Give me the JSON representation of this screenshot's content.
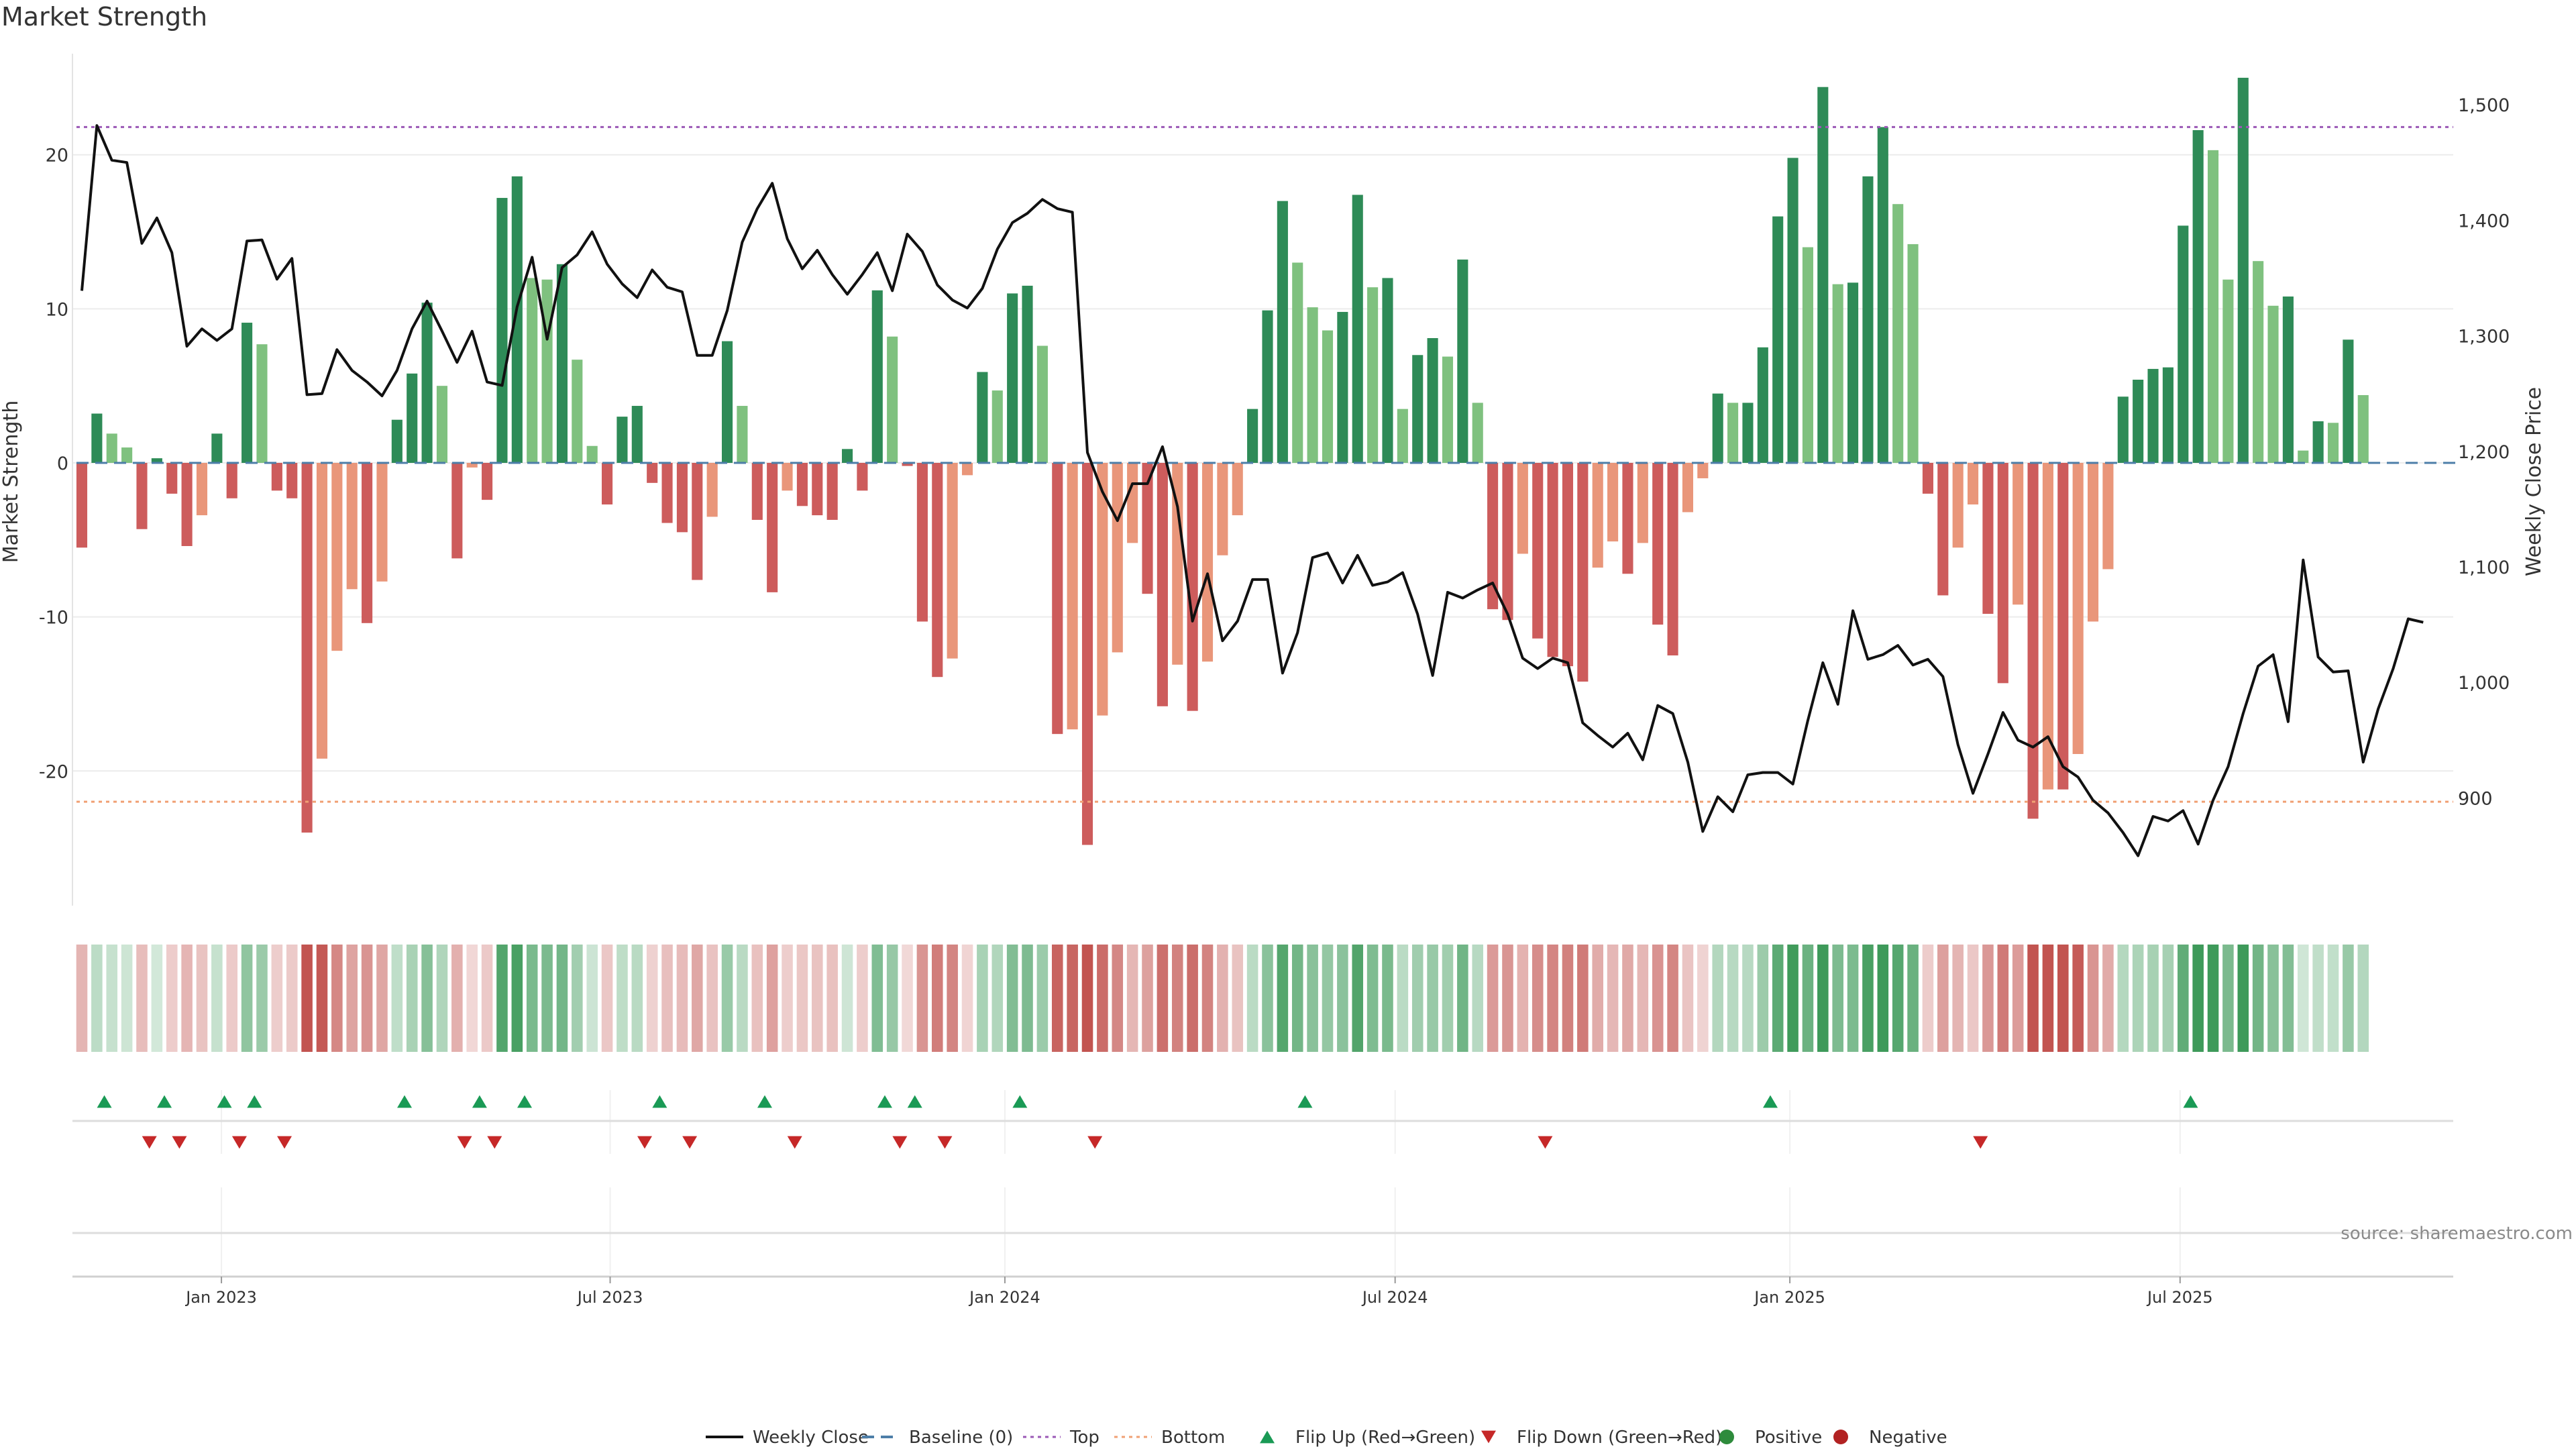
{
  "chart_data": {
    "type": "bar",
    "title": "Market Strength",
    "ylabel": "Market Strength",
    "y2label": "Weekly Close Price",
    "ylim": [
      -27,
      27
    ],
    "y2lim": [
      830,
      1550
    ],
    "yticks": [
      -20,
      -10,
      0,
      10,
      20
    ],
    "y2ticks": [
      900,
      1000,
      1100,
      1200,
      1300,
      1400,
      1500
    ],
    "y2tick_labels": [
      "900",
      "1,000",
      "1,100",
      "1,200",
      "1,300",
      "1,400",
      "1,500"
    ],
    "week_range": [
      0,
      158
    ],
    "xticks": [
      {
        "label": "Jan 2023",
        "week": 9.3
      },
      {
        "label": "Jul 2023",
        "week": 35.2
      },
      {
        "label": "Jan 2024",
        "week": 61.5
      },
      {
        "label": "Jul 2024",
        "week": 87.5
      },
      {
        "label": "Jan 2025",
        "week": 113.8
      },
      {
        "label": "Jul 2025",
        "week": 139.8
      }
    ],
    "top_level": 21.8,
    "bottom_level": -22.0,
    "strength": [
      -5.5,
      3.2,
      1.9,
      1.0,
      -4.3,
      0.3,
      -2.0,
      -5.4,
      -3.4,
      1.9,
      -2.3,
      9.1,
      7.7,
      -1.8,
      -2.3,
      -24.0,
      -19.2,
      -12.2,
      -8.2,
      -10.4,
      -7.7,
      2.8,
      5.8,
      10.4,
      5.0,
      -6.2,
      -0.3,
      -2.4,
      17.2,
      18.6,
      12.0,
      11.9,
      12.9,
      6.7,
      1.1,
      -2.7,
      3.0,
      3.7,
      -1.3,
      -3.9,
      -4.5,
      -7.6,
      -3.5,
      7.9,
      3.7,
      -3.7,
      -8.4,
      -1.8,
      -2.8,
      -3.4,
      -3.7,
      0.9,
      -1.8,
      11.2,
      8.2,
      -0.2,
      -10.3,
      -13.9,
      -12.7,
      -0.8,
      5.9,
      4.7,
      11.0,
      11.5,
      7.6,
      -17.6,
      -17.3,
      -24.8,
      -16.4,
      -12.3,
      -5.2,
      -8.5,
      -15.8,
      -13.1,
      -16.1,
      -12.9,
      -6.0,
      -3.4,
      3.5,
      9.9,
      17.0,
      13.0,
      10.1,
      8.6,
      9.8,
      17.4,
      11.4,
      12.0,
      3.5,
      7.0,
      8.1,
      6.9,
      13.2,
      3.9,
      -9.5,
      -10.2,
      -5.9,
      -11.4,
      -12.6,
      -13.2,
      -14.2,
      -6.8,
      -5.1,
      -7.2,
      -5.2,
      -10.5,
      -12.5,
      -3.2,
      -1.0,
      4.5,
      3.9,
      3.9,
      7.5,
      16.0,
      19.8,
      14.0,
      24.4,
      11.6,
      11.7,
      18.6,
      21.8,
      16.8,
      14.2,
      -2.0,
      -8.6,
      -5.5,
      -2.7,
      -9.8,
      -14.3,
      -9.2,
      -23.1,
      -21.2,
      -21.2,
      -18.9,
      -10.3,
      -6.9,
      4.3,
      5.4,
      6.1,
      6.2,
      15.4,
      21.6,
      20.3,
      11.9,
      25.0,
      13.1,
      10.2,
      10.8,
      0.8,
      2.7,
      2.6,
      8.0,
      4.4
    ],
    "weekly_close": [
      1339,
      1482,
      1452,
      1450,
      1380,
      1402,
      1372,
      1291,
      1306,
      1296,
      1306,
      1382,
      1383,
      1349,
      1367,
      1249,
      1250,
      1288,
      1270,
      1260,
      1248,
      1270,
      1306,
      1330,
      1304,
      1277,
      1304,
      1260,
      1257,
      1325,
      1368,
      1297,
      1359,
      1370,
      1390,
      1362,
      1345,
      1333,
      1357,
      1342,
      1338,
      1283,
      1283,
      1322,
      1381,
      1410,
      1432,
      1384,
      1358,
      1374,
      1353,
      1336,
      1353,
      1372,
      1339,
      1388,
      1373,
      1344,
      1331,
      1324,
      1341,
      1375,
      1398,
      1406,
      1418,
      1410,
      1407,
      1199,
      1165,
      1140,
      1172,
      1172,
      1204,
      1152,
      1053,
      1094,
      1036,
      1053,
      1089,
      1089,
      1008,
      1043,
      1108,
      1112,
      1086,
      1110,
      1084,
      1087,
      1095,
      1059,
      1006,
      1078,
      1073,
      1080,
      1086,
      1059,
      1021,
      1012,
      1021,
      1017,
      965,
      954,
      944,
      956,
      933,
      980,
      973,
      931,
      871,
      901,
      888,
      920,
      922,
      922,
      912,
      967,
      1017,
      981,
      1062,
      1020,
      1024,
      1032,
      1015,
      1020,
      1005,
      946,
      904,
      938,
      974,
      950,
      944,
      953,
      927,
      918,
      898,
      887,
      870,
      850,
      884,
      880,
      889,
      860,
      898,
      927,
      973,
      1014,
      1024,
      966,
      1106,
      1022,
      1009,
      1010,
      931,
      977,
      1012,
      1055,
      1052
    ],
    "flip_up_weeks": [
      1.5,
      5.5,
      9.5,
      11.5,
      21.5,
      26.5,
      29.5,
      38.5,
      45.5,
      53.5,
      55.5,
      62.5,
      81.5,
      112.5,
      140.5
    ],
    "flip_down_weeks": [
      4.5,
      6.5,
      10.5,
      13.5,
      25.5,
      27.5,
      37.5,
      40.5,
      47.5,
      54.5,
      57.5,
      67.5,
      97.5,
      126.5
    ],
    "legend": [
      {
        "label": "Weekly Close",
        "kind": "line",
        "color": "#111111"
      },
      {
        "label": "Baseline (0)",
        "kind": "dash",
        "color": "#4d7ea8"
      },
      {
        "label": "Top",
        "kind": "dot",
        "color": "#9b59b6"
      },
      {
        "label": "Bottom",
        "kind": "dot",
        "color": "#f0a074"
      },
      {
        "label": "Flip Up (Red→Green)",
        "kind": "triangle-up",
        "color": "#1a9a55"
      },
      {
        "label": "Flip Down (Green→Red)",
        "kind": "triangle-down",
        "color": "#c62828"
      },
      {
        "label": "Positive",
        "kind": "circle",
        "color": "#2e8b3c"
      },
      {
        "label": "Negative",
        "kind": "circle",
        "color": "#b22222"
      }
    ],
    "colors": {
      "pos_rising": "#2e8b57",
      "pos_falling": "#7fc17f",
      "neg_falling": "#cd5c5c",
      "neg_rising": "#e9967a",
      "price_line": "#111111",
      "baseline": "#4d7ea8",
      "top": "#9b59b6",
      "bottom": "#f0a074",
      "flip_up": "#1a9a55",
      "flip_down": "#c62828"
    }
  },
  "source_note": "source: sharemaestro.com"
}
